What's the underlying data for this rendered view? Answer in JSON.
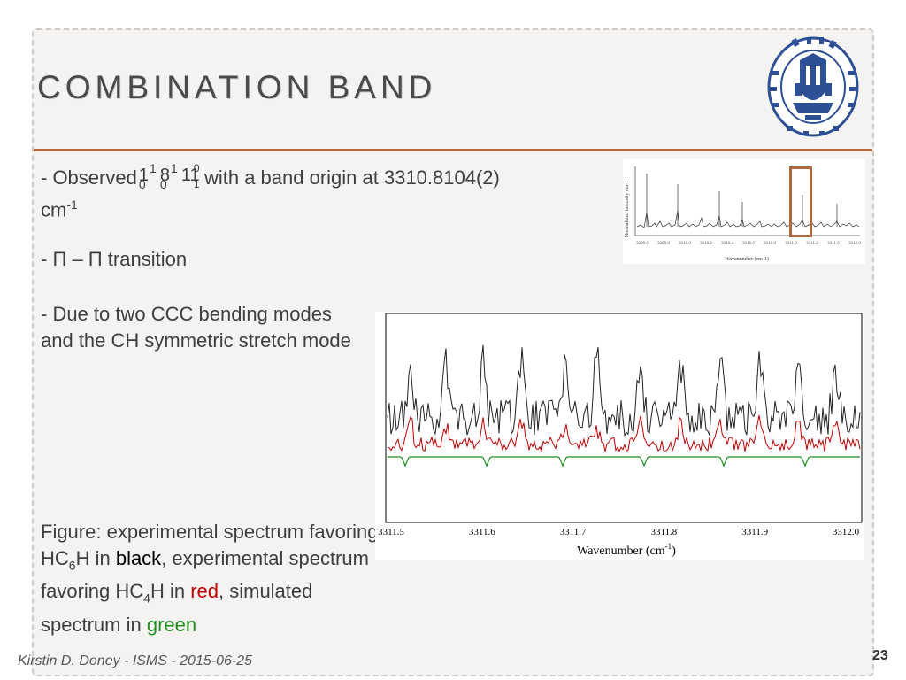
{
  "title": "COMBINATION BAND",
  "observed": {
    "prefix": "- Observed",
    "sym1": "1",
    "sym1_up": "1",
    "sym1_low": "0",
    "sym2": "8",
    "sym2_up": "1",
    "sym2_low": "0",
    "sym3": "11",
    "sym3_up": "0",
    "sym3_low": "1",
    "suffix": "with a band origin at 3310.8104(2)",
    "unit": "cm",
    "unit_exp": "-1"
  },
  "transition": "- Π – Π transition",
  "reason": "- Due to two CCC bending modes and the CH symmetric stretch mode",
  "caption": {
    "p1": "Figure: experimental spectrum favoring HC",
    "s1": "6",
    "p2": "H in ",
    "c1": "black",
    "p3": ", experimental spectrum favoring HC",
    "s2": "4",
    "p4": "H in ",
    "c2": "red",
    "p5": ", simulated spectrum in ",
    "c3": "green"
  },
  "footer": "Kirstin D. Doney - ISMS - 2015-06-25",
  "page_number": "23",
  "inset": {
    "ylabel": "Normalized intensity cm-1",
    "xlabel": "Wavenumber (cm-1)",
    "ticks": [
      "3309.6",
      "3309.8",
      "3310.0",
      "3310.2",
      "3310.4",
      "3310.6",
      "3310.8",
      "3311.0",
      "3311.2",
      "3311.6",
      "3312.0"
    ]
  },
  "spectrum": {
    "xlabel": "Wavenumber (cm",
    "xlabel_exp": "-1",
    "xlabel_end": ")",
    "ticks": [
      "3311.5",
      "3311.6",
      "3311.7",
      "3311.8",
      "3311.9",
      "3312.0"
    ]
  },
  "colors": {
    "accent": "#b0683e",
    "black_trace": "#222222",
    "red_trace": "#c00000",
    "green_trace": "#1f8f1f"
  },
  "seal": {
    "icon": "leiden-university-seal",
    "lettering": "ACADEMIA LUGDUNO BATAVA PRAESIDIUM LIBERTATIS"
  }
}
